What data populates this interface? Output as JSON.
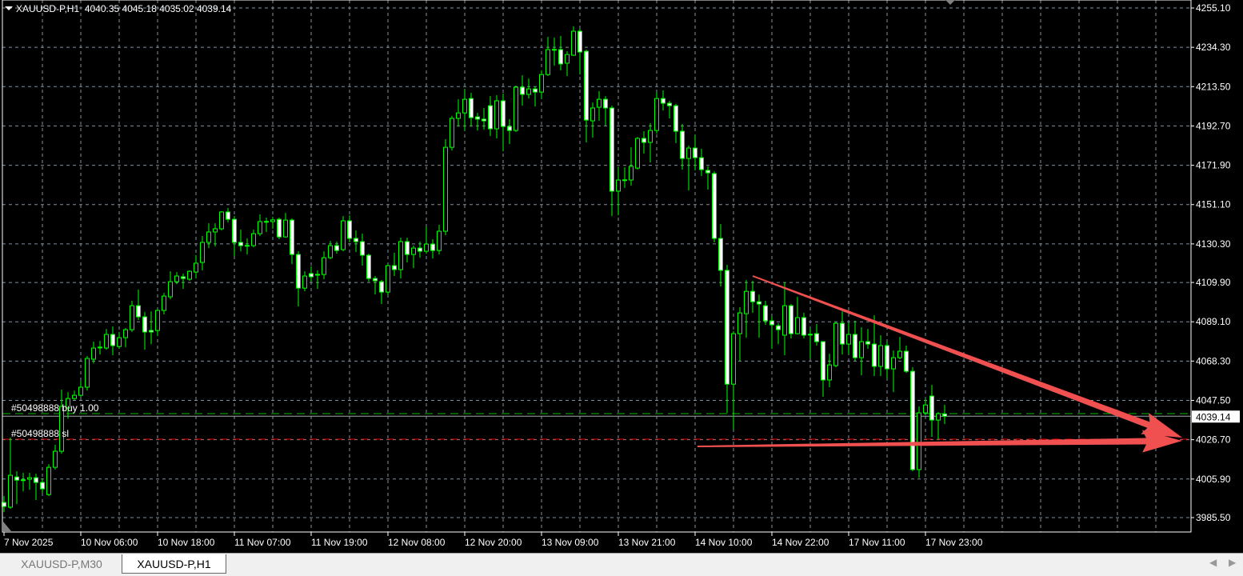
{
  "header": {
    "symbol_timeframe": "XAUUSD-P,H1",
    "ohlc": "4040.35 4045.18 4035.02 4039.14"
  },
  "orders": {
    "buy_label": "#50498888 buy 1.00",
    "sl_label": "#50498888 sl",
    "buy_price": 4040.5,
    "sl_price": 4027.0
  },
  "current_price": "4039.14",
  "tabs": [
    {
      "label": "XAUUSD-P,M30",
      "active": false
    },
    {
      "label": "XAUUSD-P,H1",
      "active": true
    }
  ],
  "colors": {
    "background": "#000000",
    "candle_outline": "#00ff00",
    "bear_body": "#ffffff",
    "bull_body": "#000000",
    "grid": "#8090a0",
    "annotation_arrows": "#f05050",
    "sl_line": "#ff0000",
    "buy_line": "#00c000"
  },
  "chart_data": {
    "type": "candlestick",
    "title": "XAUUSD-P,H1",
    "ylim": [
      3985.5,
      4255.1
    ],
    "grid": true,
    "y_ticks": [
      "4255.10",
      "4234.30",
      "4213.50",
      "4192.70",
      "4171.90",
      "4151.10",
      "4130.30",
      "4109.90",
      "4089.10",
      "4068.30",
      "4047.50",
      "4026.70",
      "4005.90",
      "3985.50"
    ],
    "x_ticks": [
      "7 Nov 2025",
      "10 Nov 06:00",
      "10 Nov 18:00",
      "11 Nov 07:00",
      "11 Nov 19:00",
      "12 Nov 08:00",
      "12 Nov 20:00",
      "13 Nov 09:00",
      "13 Nov 21:00",
      "14 Nov 10:00",
      "14 Nov 22:00",
      "17 Nov 11:00",
      "17 Nov 23:00"
    ],
    "ohlc_fields": [
      "open",
      "high",
      "low",
      "close"
    ],
    "candles": [
      [
        3993.5,
        3996.9,
        3988.4,
        3991.4
      ],
      [
        3991.0,
        4027.8,
        3990.1,
        4007.9
      ],
      [
        4007.0,
        4010.0,
        3992.7,
        4005.3
      ],
      [
        4005.3,
        4009.2,
        3999.4,
        4005.5
      ],
      [
        4005.8,
        4009.2,
        4000.2,
        4006.6
      ],
      [
        4006.6,
        4008.7,
        3994.8,
        4004.1
      ],
      [
        4004.1,
        4006.2,
        3998.6,
        4000.7
      ],
      [
        3997.7,
        4013.8,
        3996.9,
        4012.1
      ],
      [
        4012.1,
        4024.0,
        4010.9,
        4020.6
      ],
      [
        4020.6,
        4053.2,
        4019.3,
        4044.3
      ],
      [
        4043.5,
        4051.9,
        4037.9,
        4048.5
      ],
      [
        4048.5,
        4052.7,
        4047.7,
        4050.2
      ],
      [
        4050.2,
        4057.8,
        4049.4,
        4054.5
      ],
      [
        4054.5,
        4071.0,
        4052.7,
        4069.7
      ],
      [
        4069.3,
        4078.6,
        4067.1,
        4075.2
      ],
      [
        4075.6,
        4079.0,
        4071.8,
        4075.7
      ],
      [
        4075.2,
        4085.3,
        4074.3,
        4082.4
      ],
      [
        4082.4,
        4086.6,
        4071.4,
        4076.5
      ],
      [
        4076.0,
        4083.7,
        4074.8,
        4080.7
      ],
      [
        4080.7,
        4085.8,
        4075.6,
        4084.9
      ],
      [
        4084.9,
        4100.2,
        4083.7,
        4097.6
      ],
      [
        4097.6,
        4106.1,
        4090.0,
        4091.7
      ],
      [
        4091.7,
        4094.2,
        4074.3,
        4083.7
      ],
      [
        4084.5,
        4094.6,
        4077.3,
        4083.7
      ],
      [
        4084.5,
        4095.9,
        4081.5,
        4095.1
      ],
      [
        4095.1,
        4104.4,
        4093.0,
        4102.7
      ],
      [
        4102.3,
        4115.8,
        4101.0,
        4110.3
      ],
      [
        4110.3,
        4115.4,
        4109.0,
        4113.3
      ],
      [
        4112.9,
        4114.6,
        4106.5,
        4112.0
      ],
      [
        4111.6,
        4116.3,
        4110.8,
        4115.8
      ],
      [
        4115.4,
        4124.3,
        4112.0,
        4120.1
      ],
      [
        4120.5,
        4134.5,
        4116.3,
        4131.1
      ],
      [
        4131.1,
        4141.2,
        4128.1,
        4136.6
      ],
      [
        4136.6,
        4141.2,
        4128.9,
        4138.3
      ],
      [
        4138.3,
        4147.6,
        4137.4,
        4147.2
      ],
      [
        4147.2,
        4149.3,
        4141.7,
        4143.3
      ],
      [
        4143.3,
        4145.0,
        4123.9,
        4131.1
      ],
      [
        4131.1,
        4137.8,
        4126.4,
        4129.4
      ],
      [
        4129.4,
        4133.2,
        4124.7,
        4129.5
      ],
      [
        4129.4,
        4137.8,
        4128.5,
        4135.7
      ],
      [
        4135.7,
        4145.9,
        4134.5,
        4142.1
      ],
      [
        4142.1,
        4144.2,
        4136.6,
        4142.2
      ],
      [
        4142.1,
        4144.6,
        4138.3,
        4143.0
      ],
      [
        4143.3,
        4144.2,
        4132.8,
        4134.0
      ],
      [
        4134.0,
        4146.7,
        4133.6,
        4142.9
      ],
      [
        4142.9,
        4143.8,
        4119.6,
        4124.7
      ],
      [
        4124.7,
        4126.4,
        4097.2,
        4106.9
      ],
      [
        4106.9,
        4115.8,
        4105.2,
        4113.3
      ],
      [
        4114.6,
        4118.4,
        4110.3,
        4112.9
      ],
      [
        4114.1,
        4116.3,
        4106.5,
        4114.2
      ],
      [
        4114.1,
        4126.4,
        4111.6,
        4123.0
      ],
      [
        4123.0,
        4131.9,
        4122.2,
        4129.4
      ],
      [
        4129.4,
        4131.5,
        4125.1,
        4126.8
      ],
      [
        4127.3,
        4145.0,
        4126.4,
        4142.5
      ],
      [
        4142.5,
        4145.4,
        4131.1,
        4133.2
      ],
      [
        4133.2,
        4137.4,
        4126.0,
        4131.5
      ],
      [
        4131.5,
        4135.7,
        4118.8,
        4124.3
      ],
      [
        4124.3,
        4125.1,
        4110.3,
        4112.0
      ],
      [
        4112.0,
        4113.3,
        4103.6,
        4110.8
      ],
      [
        4110.3,
        4111.2,
        4098.5,
        4104.8
      ],
      [
        4104.8,
        4119.6,
        4103.1,
        4118.8
      ],
      [
        4118.8,
        4125.6,
        4113.3,
        4116.7
      ],
      [
        4116.7,
        4133.6,
        4112.0,
        4131.5
      ],
      [
        4131.5,
        4133.6,
        4120.5,
        4124.7
      ],
      [
        4124.7,
        4129.4,
        4117.5,
        4128.1
      ],
      [
        4128.1,
        4131.5,
        4123.0,
        4126.4
      ],
      [
        4126.4,
        4139.5,
        4125.1,
        4130.2
      ],
      [
        4130.2,
        4132.8,
        4122.6,
        4126.8
      ],
      [
        4126.8,
        4140.4,
        4124.7,
        4137.0
      ],
      [
        4137.0,
        4185.7,
        4134.9,
        4181.4
      ],
      [
        4181.4,
        4198.0,
        4179.7,
        4196.7
      ],
      [
        4196.7,
        4206.8,
        4192.4,
        4199.6
      ],
      [
        4199.6,
        4212.3,
        4190.3,
        4206.8
      ],
      [
        4207.2,
        4210.2,
        4192.4,
        4197.1
      ],
      [
        4197.5,
        4199.6,
        4190.3,
        4196.3
      ],
      [
        4196.3,
        4202.2,
        4190.8,
        4195.4
      ],
      [
        4203.4,
        4208.5,
        4187.4,
        4191.2
      ],
      [
        4191.2,
        4208.9,
        4186.1,
        4206.0
      ],
      [
        4206.0,
        4209.8,
        4179.3,
        4192.4
      ],
      [
        4192.4,
        4196.3,
        4183.1,
        4190.3
      ],
      [
        4190.3,
        4214.0,
        4189.5,
        4213.2
      ],
      [
        4213.2,
        4219.5,
        4203.4,
        4209.4
      ],
      [
        4209.4,
        4217.8,
        4207.2,
        4212.3
      ],
      [
        4212.3,
        4213.6,
        4203.0,
        4210.6
      ],
      [
        4210.6,
        4222.1,
        4207.2,
        4219.9
      ],
      [
        4219.9,
        4239.8,
        4219.1,
        4233.1
      ],
      [
        4233.1,
        4239.4,
        4224.6,
        4233.2
      ],
      [
        4233.1,
        4240.3,
        4222.1,
        4225.5
      ],
      [
        4225.9,
        4232.2,
        4219.1,
        4230.5
      ],
      [
        4230.1,
        4245.4,
        4229.7,
        4242.8
      ],
      [
        4242.8,
        4244.1,
        4219.9,
        4231.8
      ],
      [
        4232.2,
        4233.1,
        4184.0,
        4195.8
      ],
      [
        4195.4,
        4205.1,
        4186.5,
        4202.2
      ],
      [
        4202.6,
        4211.1,
        4195.4,
        4206.8
      ],
      [
        4206.8,
        4208.5,
        4192.9,
        4202.2
      ],
      [
        4202.2,
        4203.4,
        4145.0,
        4158.2
      ],
      [
        4158.2,
        4170.8,
        4145.5,
        4164.1
      ],
      [
        4164.1,
        4170.8,
        4159.9,
        4164.2
      ],
      [
        4164.1,
        4181.4,
        4161.1,
        4171.3
      ],
      [
        4170.4,
        4186.9,
        4169.6,
        4186.1
      ],
      [
        4186.1,
        4189.9,
        4178.1,
        4184.0
      ],
      [
        4184.0,
        4194.1,
        4173.4,
        4190.3
      ],
      [
        4190.3,
        4210.6,
        4188.6,
        4207.2
      ],
      [
        4207.2,
        4211.5,
        4200.9,
        4204.7
      ],
      [
        4204.7,
        4206.0,
        4196.7,
        4203.4
      ],
      [
        4203.4,
        4204.3,
        4183.6,
        4189.9
      ],
      [
        4189.9,
        4193.7,
        4169.6,
        4175.5
      ],
      [
        4175.5,
        4182.3,
        4158.6,
        4181.0
      ],
      [
        4181.0,
        4187.8,
        4169.2,
        4175.9
      ],
      [
        4175.9,
        4180.6,
        4166.2,
        4169.6
      ],
      [
        4169.2,
        4171.3,
        4159.0,
        4167.9
      ],
      [
        4167.5,
        4168.7,
        4131.1,
        4133.2
      ],
      [
        4133.2,
        4140.8,
        4107.8,
        4116.3
      ],
      [
        4116.3,
        4119.2,
        4040.9,
        4056.1
      ],
      [
        4056.1,
        4084.1,
        4032.0,
        4082.8
      ],
      [
        4082.8,
        4096.8,
        4068.4,
        4093.8
      ],
      [
        4093.4,
        4111.2,
        4080.7,
        4105.2
      ],
      [
        4105.2,
        4110.8,
        4093.8,
        4099.7
      ],
      [
        4099.7,
        4103.5,
        4080.7,
        4098.5
      ],
      [
        4097.6,
        4100.2,
        4087.5,
        4089.6
      ],
      [
        4089.6,
        4092.1,
        4074.8,
        4087.5
      ],
      [
        4087.0,
        4088.3,
        4077.3,
        4084.9
      ],
      [
        4082.0,
        4109.9,
        4071.4,
        4097.6
      ],
      [
        4097.6,
        4098.5,
        4080.3,
        4082.8
      ],
      [
        4082.8,
        4102.3,
        4082.4,
        4091.3
      ],
      [
        4091.3,
        4093.8,
        4080.3,
        4082.0
      ],
      [
        4082.4,
        4085.8,
        4069.7,
        4082.5
      ],
      [
        4082.8,
        4087.9,
        4076.5,
        4078.6
      ],
      [
        4078.6,
        4078.6,
        4049.4,
        4058.3
      ],
      [
        4058.3,
        4072.2,
        4054.5,
        4066.3
      ],
      [
        4065.9,
        4089.2,
        4065.0,
        4088.3
      ],
      [
        4088.3,
        4094.6,
        4071.8,
        4077.3
      ],
      [
        4077.3,
        4088.7,
        4071.8,
        4082.4
      ],
      [
        4082.4,
        4089.6,
        4068.4,
        4070.1
      ],
      [
        4070.1,
        4086.2,
        4060.8,
        4078.6
      ],
      [
        4078.6,
        4085.3,
        4074.8,
        4077.3
      ],
      [
        4077.3,
        4092.5,
        4060.4,
        4065.5
      ],
      [
        4065.5,
        4082.0,
        4060.4,
        4076.5
      ],
      [
        4076.5,
        4078.6,
        4059.1,
        4064.2
      ],
      [
        4064.2,
        4073.9,
        4051.9,
        4070.1
      ],
      [
        4070.1,
        4081.1,
        4069.3,
        4073.5
      ],
      [
        4073.5,
        4076.5,
        4062.0,
        4062.9
      ],
      [
        4062.9,
        4065.0,
        4010.0,
        4010.9
      ],
      [
        4010.9,
        4044.3,
        4006.6,
        4040.9
      ],
      [
        4040.9,
        4048.5,
        4039.6,
        4045.1
      ],
      [
        4049.8,
        4055.7,
        4028.2,
        4037.1
      ],
      [
        4037.1,
        4041.3,
        4027.0,
        4040.5
      ],
      [
        4040.35,
        4045.18,
        4035.02,
        4039.14
      ]
    ],
    "annotations": [
      {
        "type": "arrow",
        "from": [
          "14 Nov 12:00",
          4109.9
        ],
        "to": [
          "18 Nov 11:00",
          4026.7
        ]
      },
      {
        "type": "arrow",
        "from": [
          "14 Nov 01:00",
          4023.0
        ],
        "to": [
          "18 Nov 11:00",
          4025.5
        ]
      }
    ]
  }
}
